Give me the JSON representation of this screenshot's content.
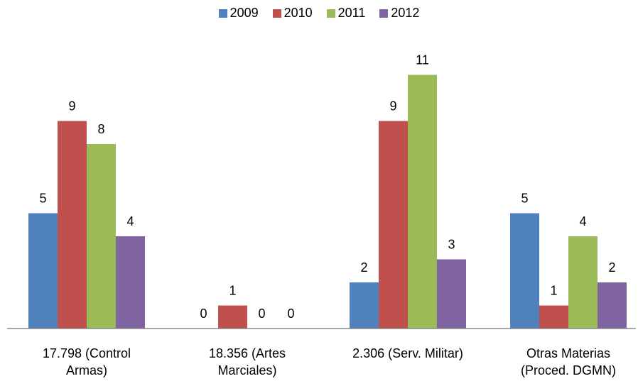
{
  "chart_data": {
    "type": "bar",
    "categories": [
      "17.798 (Control\nArmas)",
      "18.356 (Artes\nMarciales)",
      "2.306  (Serv. Militar)",
      "Otras Materias\n(Proced. DGMN)"
    ],
    "series": [
      {
        "name": "2009",
        "color": "#4f81bd",
        "values": [
          5,
          0,
          2,
          5
        ]
      },
      {
        "name": "2010",
        "color": "#c0504d",
        "values": [
          9,
          1,
          9,
          1
        ]
      },
      {
        "name": "2011",
        "color": "#9bbb59",
        "values": [
          8,
          0,
          11,
          4
        ]
      },
      {
        "name": "2012",
        "color": "#8064a2",
        "values": [
          4,
          0,
          3,
          2
        ]
      }
    ],
    "ylim": [
      0,
      11.9
    ],
    "legend": "top"
  }
}
